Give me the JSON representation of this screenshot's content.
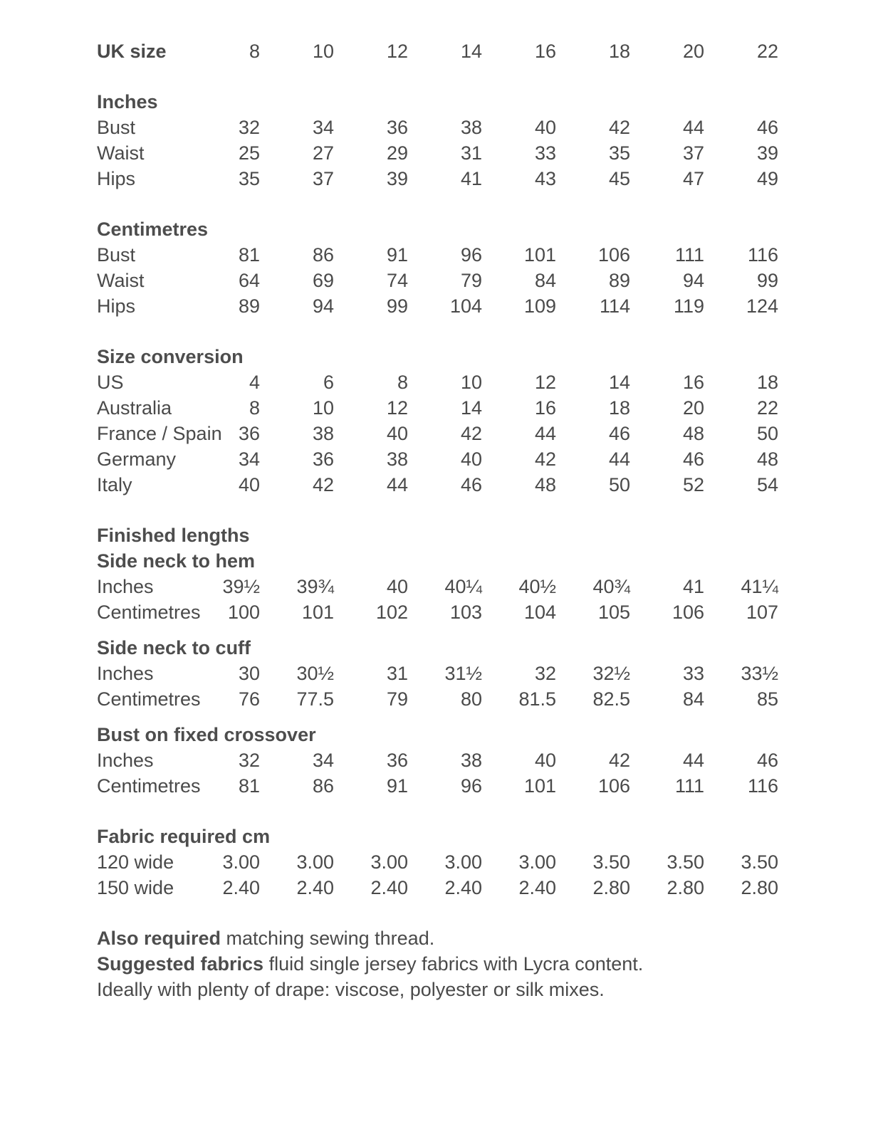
{
  "header": {
    "label": "UK size",
    "values": [
      "8",
      "10",
      "12",
      "14",
      "16",
      "18",
      "20",
      "22"
    ]
  },
  "sections": [
    {
      "title": "Inches",
      "gap": "sec",
      "rows": [
        {
          "label": "Bust",
          "values": [
            "32",
            "34",
            "36",
            "38",
            "40",
            "42",
            "44",
            "46"
          ]
        },
        {
          "label": "Waist",
          "values": [
            "25",
            "27",
            "29",
            "31",
            "33",
            "35",
            "37",
            "39"
          ]
        },
        {
          "label": "Hips",
          "values": [
            "35",
            "37",
            "39",
            "41",
            "43",
            "45",
            "47",
            "49"
          ]
        }
      ]
    },
    {
      "title": "Centimetres",
      "gap": "sec",
      "rows": [
        {
          "label": "Bust",
          "values": [
            "81",
            "86",
            "91",
            "96",
            "101",
            "106",
            "111",
            "116"
          ]
        },
        {
          "label": "Waist",
          "values": [
            "64",
            "69",
            "74",
            "79",
            "84",
            "89",
            "94",
            "99"
          ]
        },
        {
          "label": "Hips",
          "values": [
            "89",
            "94",
            "99",
            "104",
            "109",
            "114",
            "119",
            "124"
          ]
        }
      ]
    },
    {
      "title": "Size conversion",
      "gap": "sec",
      "rows": [
        {
          "label": "US",
          "values": [
            "4",
            "6",
            "8",
            "10",
            "12",
            "14",
            "16",
            "18"
          ]
        },
        {
          "label": "Australia",
          "values": [
            "8",
            "10",
            "12",
            "14",
            "16",
            "18",
            "20",
            "22"
          ]
        },
        {
          "label": "France / Spain",
          "values": [
            "36",
            "38",
            "40",
            "42",
            "44",
            "46",
            "48",
            "50"
          ]
        },
        {
          "label": "Germany",
          "values": [
            "34",
            "36",
            "38",
            "40",
            "42",
            "44",
            "46",
            "48"
          ]
        },
        {
          "label": "Italy",
          "values": [
            "40",
            "42",
            "44",
            "46",
            "48",
            "50",
            "52",
            "54"
          ]
        }
      ]
    },
    {
      "title": "Finished lengths",
      "gap": "sec",
      "rows": []
    },
    {
      "title": "Side neck to hem",
      "gap": "",
      "rows": [
        {
          "label": "Inches",
          "values": [
            "39½",
            "39¾",
            "40",
            "40¼",
            "40½",
            "40¾",
            "41",
            "41¼"
          ]
        },
        {
          "label": "Centimetres",
          "values": [
            "100",
            "101",
            "102",
            "103",
            "104",
            "105",
            "106",
            "107"
          ]
        }
      ]
    },
    {
      "title": "Side neck to cuff",
      "gap": "sub",
      "rows": [
        {
          "label": "Inches",
          "values": [
            "30",
            "30½",
            "31",
            "31½",
            "32",
            "32½",
            "33",
            "33½"
          ]
        },
        {
          "label": "Centimetres",
          "values": [
            "76",
            "77.5",
            "79",
            "80",
            "81.5",
            "82.5",
            "84",
            "85"
          ]
        }
      ]
    },
    {
      "title": "Bust on fixed crossover",
      "gap": "sub",
      "rows": [
        {
          "label": "Inches",
          "values": [
            "32",
            "34",
            "36",
            "38",
            "40",
            "42",
            "44",
            "46"
          ]
        },
        {
          "label": "Centimetres",
          "values": [
            "81",
            "86",
            "91",
            "96",
            "101",
            "106",
            "111",
            "116"
          ]
        }
      ]
    },
    {
      "title": "Fabric required cm",
      "gap": "sec",
      "rows": [
        {
          "label": "120 wide",
          "values": [
            "3.00",
            "3.00",
            "3.00",
            "3.00",
            "3.00",
            "3.50",
            "3.50",
            "3.50"
          ]
        },
        {
          "label": "150 wide",
          "values": [
            "2.40",
            "2.40",
            "2.40",
            "2.40",
            "2.40",
            "2.80",
            "2.80",
            "2.80"
          ]
        }
      ]
    }
  ],
  "notes": [
    {
      "bold": "Also required",
      "text": " matching sewing thread."
    },
    {
      "bold": "Suggested fabrics",
      "text": " fluid single jersey fabrics with Lycra content."
    },
    {
      "bold": "",
      "text": "Ideally with plenty of drape: viscose, polyester or silk mixes."
    }
  ]
}
